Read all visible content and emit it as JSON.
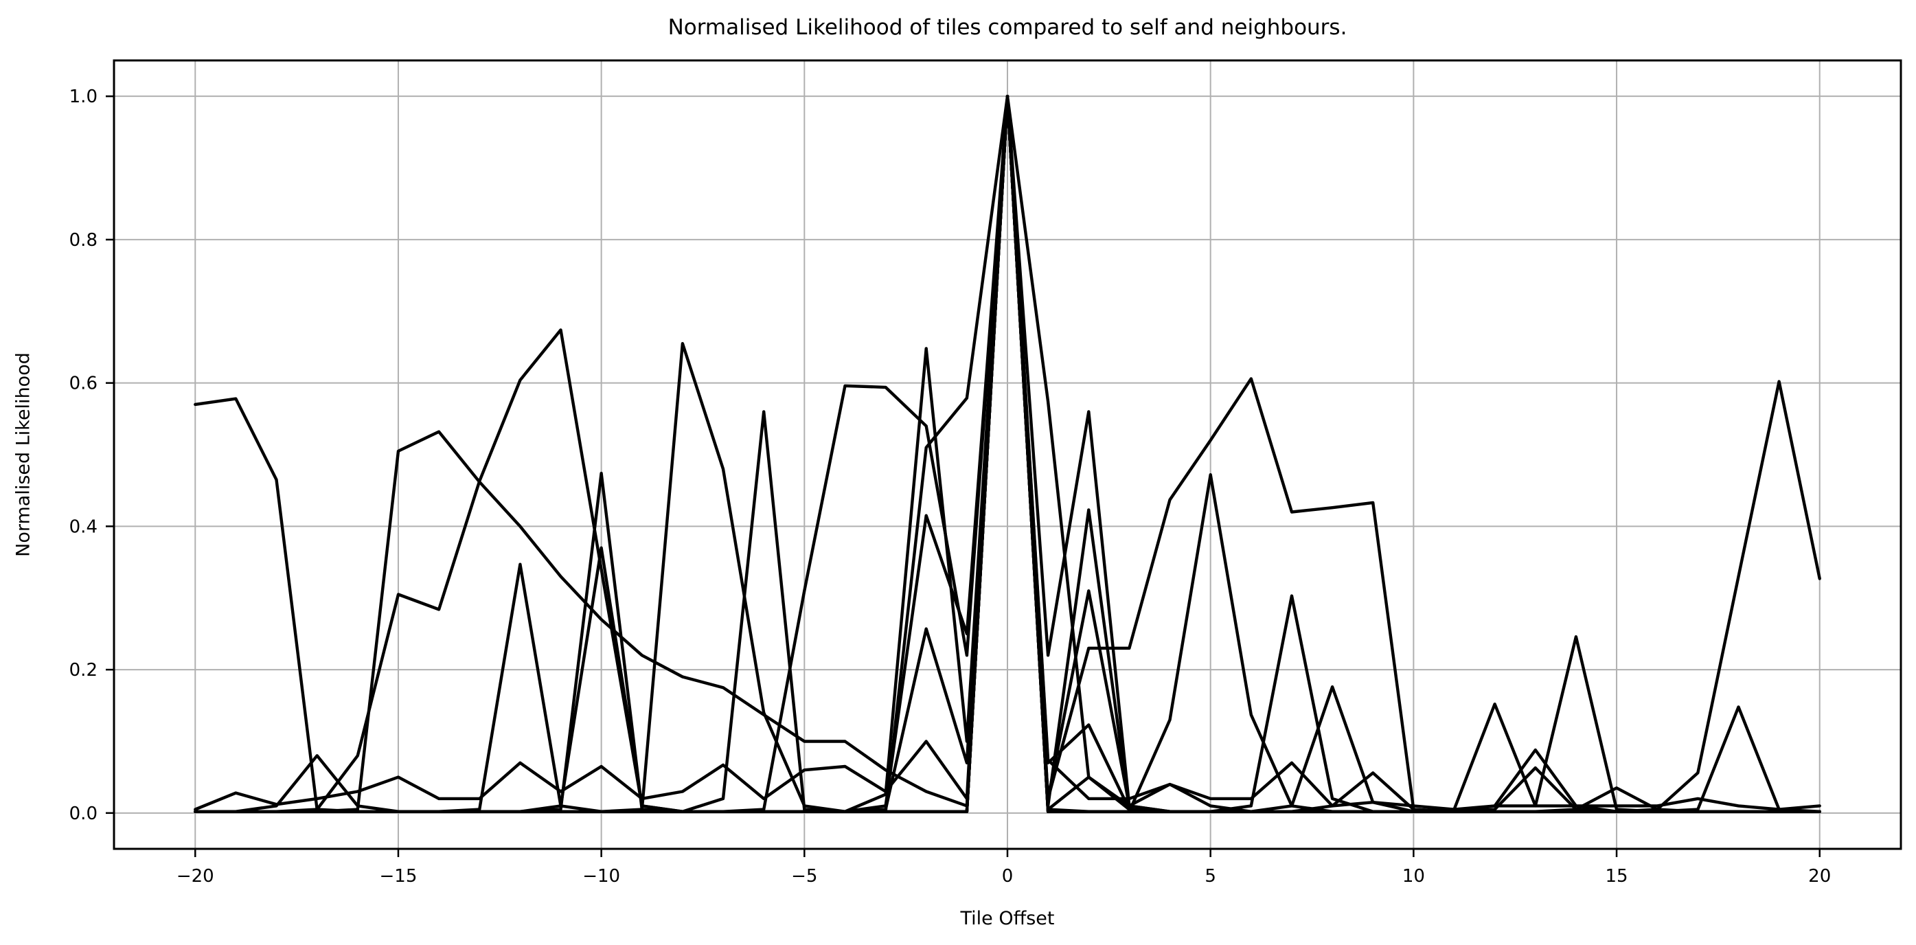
{
  "chart_data": {
    "type": "line",
    "title": "Normalised Likelihood of tiles compared to self and neighbours.",
    "xlabel": "Tile Offset",
    "ylabel": "Normalised Likelihood",
    "grid": true,
    "legend_position": "none",
    "line_color": "#000000",
    "grid_color": "#b0b0b0",
    "spine_color": "#000000",
    "background_color": "#ffffff",
    "xlim": [
      -22,
      22
    ],
    "ylim": [
      -0.05,
      1.05
    ],
    "xticks": [
      -20,
      -15,
      -10,
      -5,
      0,
      5,
      10,
      15,
      20
    ],
    "xtick_labels": [
      "−20",
      "−15",
      "−10",
      "−5",
      "0",
      "5",
      "10",
      "15",
      "20"
    ],
    "yticks": [
      0.0,
      0.2,
      0.4,
      0.6,
      0.8,
      1.0
    ],
    "ytick_labels": [
      "0.0",
      "0.2",
      "0.4",
      "0.6",
      "0.8",
      "1.0"
    ],
    "x": [
      -20,
      -19,
      -18,
      -17,
      -16,
      -15,
      -14,
      -13,
      -12,
      -11,
      -10,
      -9,
      -8,
      -7,
      -6,
      -5,
      -4,
      -3,
      -2,
      -1,
      0,
      1,
      2,
      3,
      4,
      5,
      6,
      7,
      8,
      9,
      10,
      11,
      12,
      13,
      14,
      15,
      16,
      17,
      18,
      19,
      20
    ],
    "series": [
      {
        "values": [
          0.57,
          0.578,
          0.465,
          0.005,
          0.002,
          0.002,
          0.002,
          0.002,
          0.002,
          0.002,
          0.002,
          0.002,
          0.002,
          0.002,
          0.002,
          0.002,
          0.002,
          0.002,
          0.002,
          0.002,
          1.0,
          0.002,
          0.002,
          0.002,
          0.002,
          0.002,
          0.002,
          0.002,
          0.002,
          0.002,
          0.002,
          0.002,
          0.002,
          0.002,
          0.002,
          0.002,
          0.002,
          0.002,
          0.002,
          0.002,
          0.002
        ]
      },
      {
        "values": [
          0.002,
          0.002,
          0.002,
          0.002,
          0.005,
          0.505,
          0.532,
          0.462,
          0.4,
          0.33,
          0.27,
          0.22,
          0.19,
          0.175,
          0.137,
          0.1,
          0.1,
          0.06,
          0.03,
          0.01,
          1.0,
          0.01,
          0.423,
          0.005,
          0.002,
          0.002,
          0.002,
          0.002,
          0.002,
          0.002,
          0.002,
          0.002,
          0.002,
          0.002,
          0.002,
          0.002,
          0.002,
          0.002,
          0.002,
          0.002,
          0.002
        ]
      },
      {
        "values": [
          0.002,
          0.002,
          0.002,
          0.005,
          0.08,
          0.305,
          0.284,
          0.463,
          0.604,
          0.674,
          0.34,
          0.01,
          0.002,
          0.002,
          0.002,
          0.002,
          0.002,
          0.002,
          0.002,
          0.002,
          1.0,
          0.002,
          0.002,
          0.002,
          0.002,
          0.002,
          0.002,
          0.002,
          0.002,
          0.002,
          0.002,
          0.005,
          0.152,
          0.01,
          0.246,
          0.005,
          0.002,
          0.002,
          0.002,
          0.002,
          0.002
        ]
      },
      {
        "values": [
          0.002,
          0.002,
          0.002,
          0.002,
          0.002,
          0.002,
          0.002,
          0.005,
          0.347,
          0.01,
          0.002,
          0.002,
          0.002,
          0.002,
          0.002,
          0.002,
          0.002,
          0.002,
          0.002,
          0.002,
          1.0,
          0.02,
          0.31,
          0.01,
          0.002,
          0.002,
          0.002,
          0.01,
          0.176,
          0.015,
          0.002,
          0.002,
          0.002,
          0.002,
          0.002,
          0.002,
          0.002,
          0.002,
          0.002,
          0.002,
          0.002
        ]
      },
      {
        "values": [
          0.002,
          0.002,
          0.01,
          0.08,
          0.01,
          0.002,
          0.002,
          0.002,
          0.002,
          0.002,
          0.002,
          0.002,
          0.002,
          0.02,
          0.56,
          0.005,
          0.002,
          0.002,
          0.002,
          0.002,
          1.0,
          0.002,
          0.002,
          0.002,
          0.002,
          0.002,
          0.01,
          0.303,
          0.02,
          0.002,
          0.002,
          0.002,
          0.002,
          0.002,
          0.002,
          0.002,
          0.002,
          0.005,
          0.148,
          0.005,
          0.002
        ]
      },
      {
        "values": [
          0.002,
          0.002,
          0.002,
          0.002,
          0.002,
          0.002,
          0.002,
          0.002,
          0.002,
          0.005,
          0.474,
          0.005,
          0.002,
          0.002,
          0.002,
          0.002,
          0.002,
          0.002,
          0.002,
          0.002,
          1.0,
          0.002,
          0.002,
          0.002,
          0.002,
          0.002,
          0.002,
          0.002,
          0.002,
          0.002,
          0.002,
          0.002,
          0.002,
          0.002,
          0.002,
          0.002,
          0.005,
          0.056,
          0.33,
          0.602,
          0.327
        ]
      },
      {
        "values": [
          0.002,
          0.002,
          0.002,
          0.002,
          0.002,
          0.002,
          0.002,
          0.002,
          0.002,
          0.01,
          0.37,
          0.01,
          0.002,
          0.002,
          0.002,
          0.002,
          0.002,
          0.002,
          0.002,
          0.002,
          1.0,
          0.002,
          0.002,
          0.002,
          0.002,
          0.002,
          0.002,
          0.002,
          0.01,
          0.056,
          0.005,
          0.002,
          0.01,
          0.088,
          0.01,
          0.002,
          0.002,
          0.002,
          0.002,
          0.002,
          0.002
        ]
      },
      {
        "values": [
          0.002,
          0.002,
          0.002,
          0.002,
          0.002,
          0.002,
          0.002,
          0.002,
          0.002,
          0.002,
          0.002,
          0.005,
          0.655,
          0.48,
          0.14,
          0.01,
          0.002,
          0.002,
          0.002,
          0.002,
          1.0,
          0.22,
          0.56,
          0.01,
          0.002,
          0.002,
          0.002,
          0.002,
          0.002,
          0.002,
          0.002,
          0.002,
          0.002,
          0.002,
          0.002,
          0.002,
          0.002,
          0.002,
          0.002,
          0.002,
          0.002
        ]
      },
      {
        "values": [
          0.002,
          0.002,
          0.002,
          0.002,
          0.002,
          0.002,
          0.002,
          0.002,
          0.002,
          0.002,
          0.002,
          0.002,
          0.002,
          0.002,
          0.005,
          0.31,
          0.596,
          0.594,
          0.54,
          0.22,
          1.0,
          0.02,
          0.23,
          0.23,
          0.437,
          0.52,
          0.606,
          0.42,
          0.426,
          0.433,
          0.005,
          0.002,
          0.002,
          0.002,
          0.002,
          0.002,
          0.002,
          0.002,
          0.002,
          0.002,
          0.002
        ]
      },
      {
        "values": [
          0.002,
          0.002,
          0.002,
          0.002,
          0.002,
          0.002,
          0.002,
          0.002,
          0.002,
          0.002,
          0.002,
          0.002,
          0.002,
          0.002,
          0.002,
          0.002,
          0.002,
          0.026,
          0.648,
          0.1,
          1.0,
          0.07,
          0.123,
          0.005,
          0.002,
          0.002,
          0.002,
          0.002,
          0.002,
          0.002,
          0.002,
          0.002,
          0.002,
          0.002,
          0.005,
          0.035,
          0.005,
          0.002,
          0.002,
          0.002,
          0.002
        ]
      },
      {
        "values": [
          0.002,
          0.002,
          0.002,
          0.002,
          0.002,
          0.002,
          0.002,
          0.002,
          0.002,
          0.002,
          0.002,
          0.002,
          0.002,
          0.002,
          0.002,
          0.002,
          0.002,
          0.01,
          0.415,
          0.25,
          1.0,
          0.005,
          0.05,
          0.01,
          0.04,
          0.01,
          0.002,
          0.002,
          0.002,
          0.002,
          0.002,
          0.002,
          0.005,
          0.063,
          0.005,
          0.002,
          0.002,
          0.002,
          0.002,
          0.002,
          0.002
        ]
      },
      {
        "values": [
          0.002,
          0.002,
          0.002,
          0.002,
          0.002,
          0.002,
          0.002,
          0.002,
          0.002,
          0.002,
          0.002,
          0.002,
          0.002,
          0.002,
          0.002,
          0.002,
          0.002,
          0.005,
          0.257,
          0.07,
          1.0,
          0.005,
          0.002,
          0.002,
          0.13,
          0.472,
          0.137,
          0.01,
          0.002,
          0.002,
          0.002,
          0.002,
          0.002,
          0.002,
          0.002,
          0.002,
          0.002,
          0.002,
          0.002,
          0.002,
          0.002
        ]
      },
      {
        "values": [
          0.002,
          0.002,
          0.002,
          0.002,
          0.002,
          0.002,
          0.002,
          0.002,
          0.002,
          0.002,
          0.002,
          0.002,
          0.002,
          0.002,
          0.002,
          0.002,
          0.002,
          0.002,
          0.51,
          0.579,
          1.0,
          0.574,
          0.05,
          0.005,
          0.002,
          0.002,
          0.002,
          0.002,
          0.002,
          0.002,
          0.002,
          0.002,
          0.002,
          0.002,
          0.002,
          0.002,
          0.002,
          0.002,
          0.002,
          0.002,
          0.002
        ]
      },
      {
        "values": [
          0.005,
          0.028,
          0.012,
          0.02,
          0.03,
          0.05,
          0.02,
          0.02,
          0.07,
          0.03,
          0.065,
          0.02,
          0.03,
          0.067,
          0.02,
          0.06,
          0.065,
          0.03,
          0.1,
          0.02,
          1.0,
          0.074,
          0.02,
          0.02,
          0.04,
          0.02,
          0.02,
          0.07,
          0.01,
          0.015,
          0.01,
          0.005,
          0.01,
          0.01,
          0.01,
          0.01,
          0.01,
          0.02,
          0.01,
          0.005,
          0.01
        ]
      }
    ]
  }
}
